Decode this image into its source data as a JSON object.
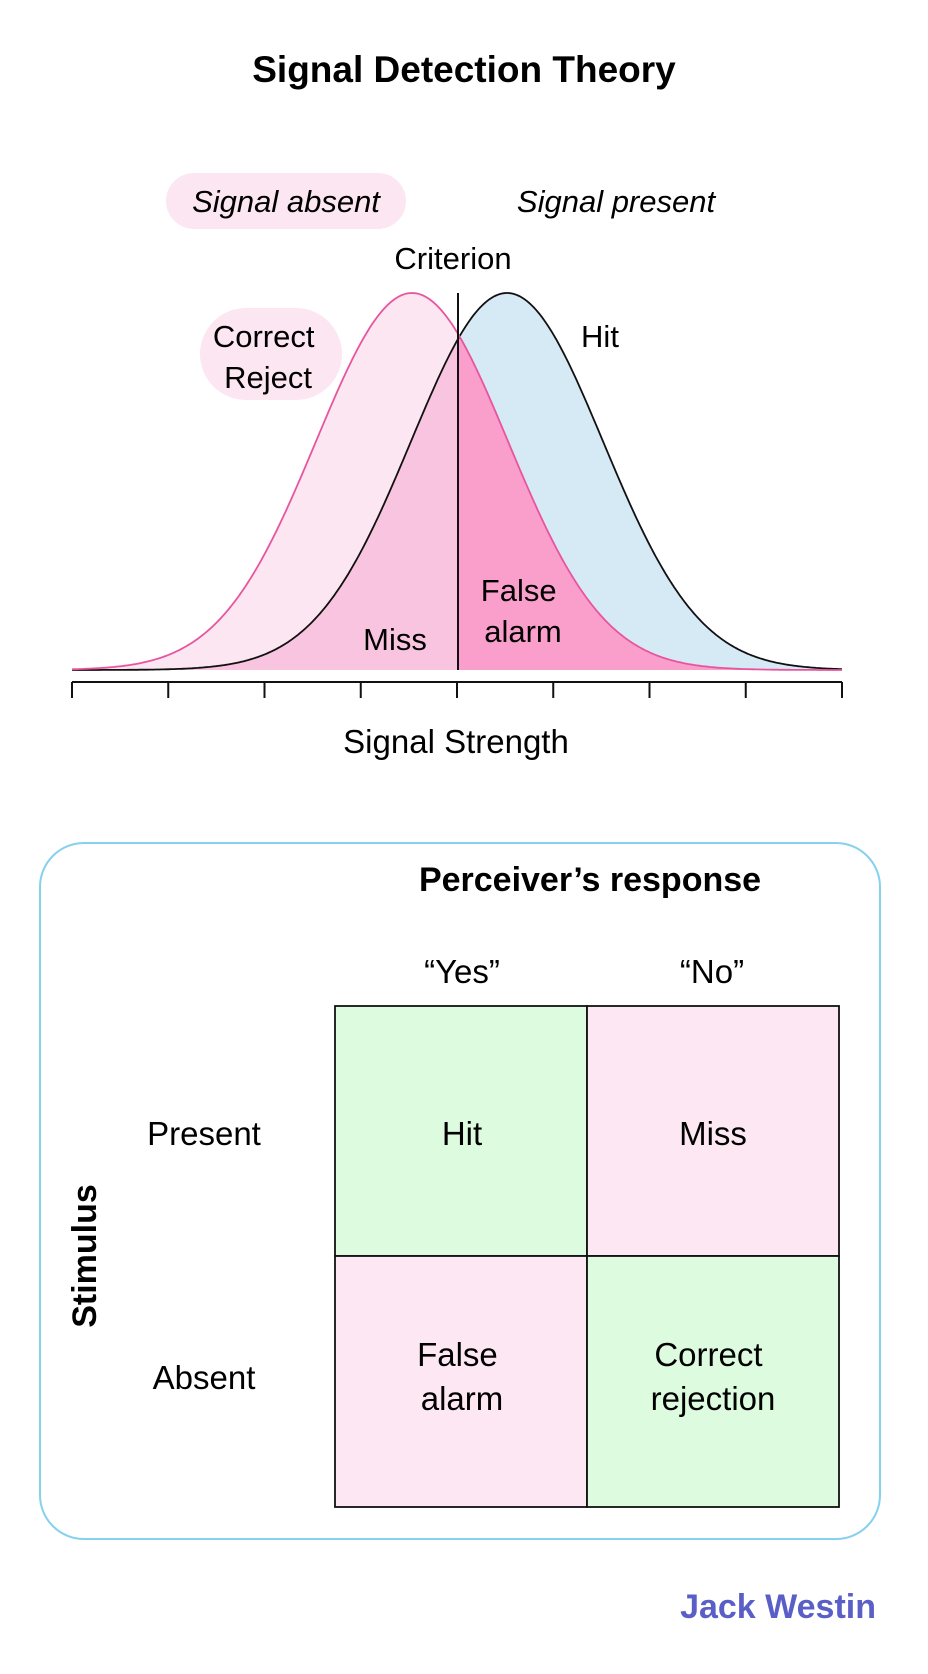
{
  "title": "Signal Detection Theory",
  "distribution_chart": {
    "labels": {
      "signal_absent": "Signal absent",
      "signal_present": "Signal present",
      "criterion": "Criterion",
      "correct_reject_line1": "Correct",
      "correct_reject_line2": "Reject",
      "hit": "Hit",
      "miss": "Miss",
      "false_alarm_line1": "False",
      "false_alarm_line2": "alarm"
    },
    "x_axis_label": "Signal Strength",
    "tick_count": 9
  },
  "response_matrix": {
    "column_header": "Perceiver’s response",
    "row_header": "Stimulus",
    "columns": [
      "“Yes”",
      "“No”"
    ],
    "rows": [
      "Present",
      "Absent"
    ],
    "cells": [
      [
        {
          "line1": "Hit",
          "line2": ""
        },
        {
          "line1": "Miss",
          "line2": ""
        }
      ],
      [
        {
          "line1": "False",
          "line2": "alarm"
        },
        {
          "line1": "Correct",
          "line2": "rejection"
        }
      ]
    ]
  },
  "colors": {
    "absent_curve": "#e8559f",
    "absent_fill": "#fce6f1",
    "present_fill": "#d6eaf6",
    "miss_fill": "#f8c4df",
    "false_alarm_fill": "#fa9fcc",
    "box_border": "#86d1ee",
    "cell_green": "#dcfbdf",
    "cell_pink": "#fce7f2",
    "brand": "#5a5ec7"
  },
  "brand": "Jack Westin"
}
